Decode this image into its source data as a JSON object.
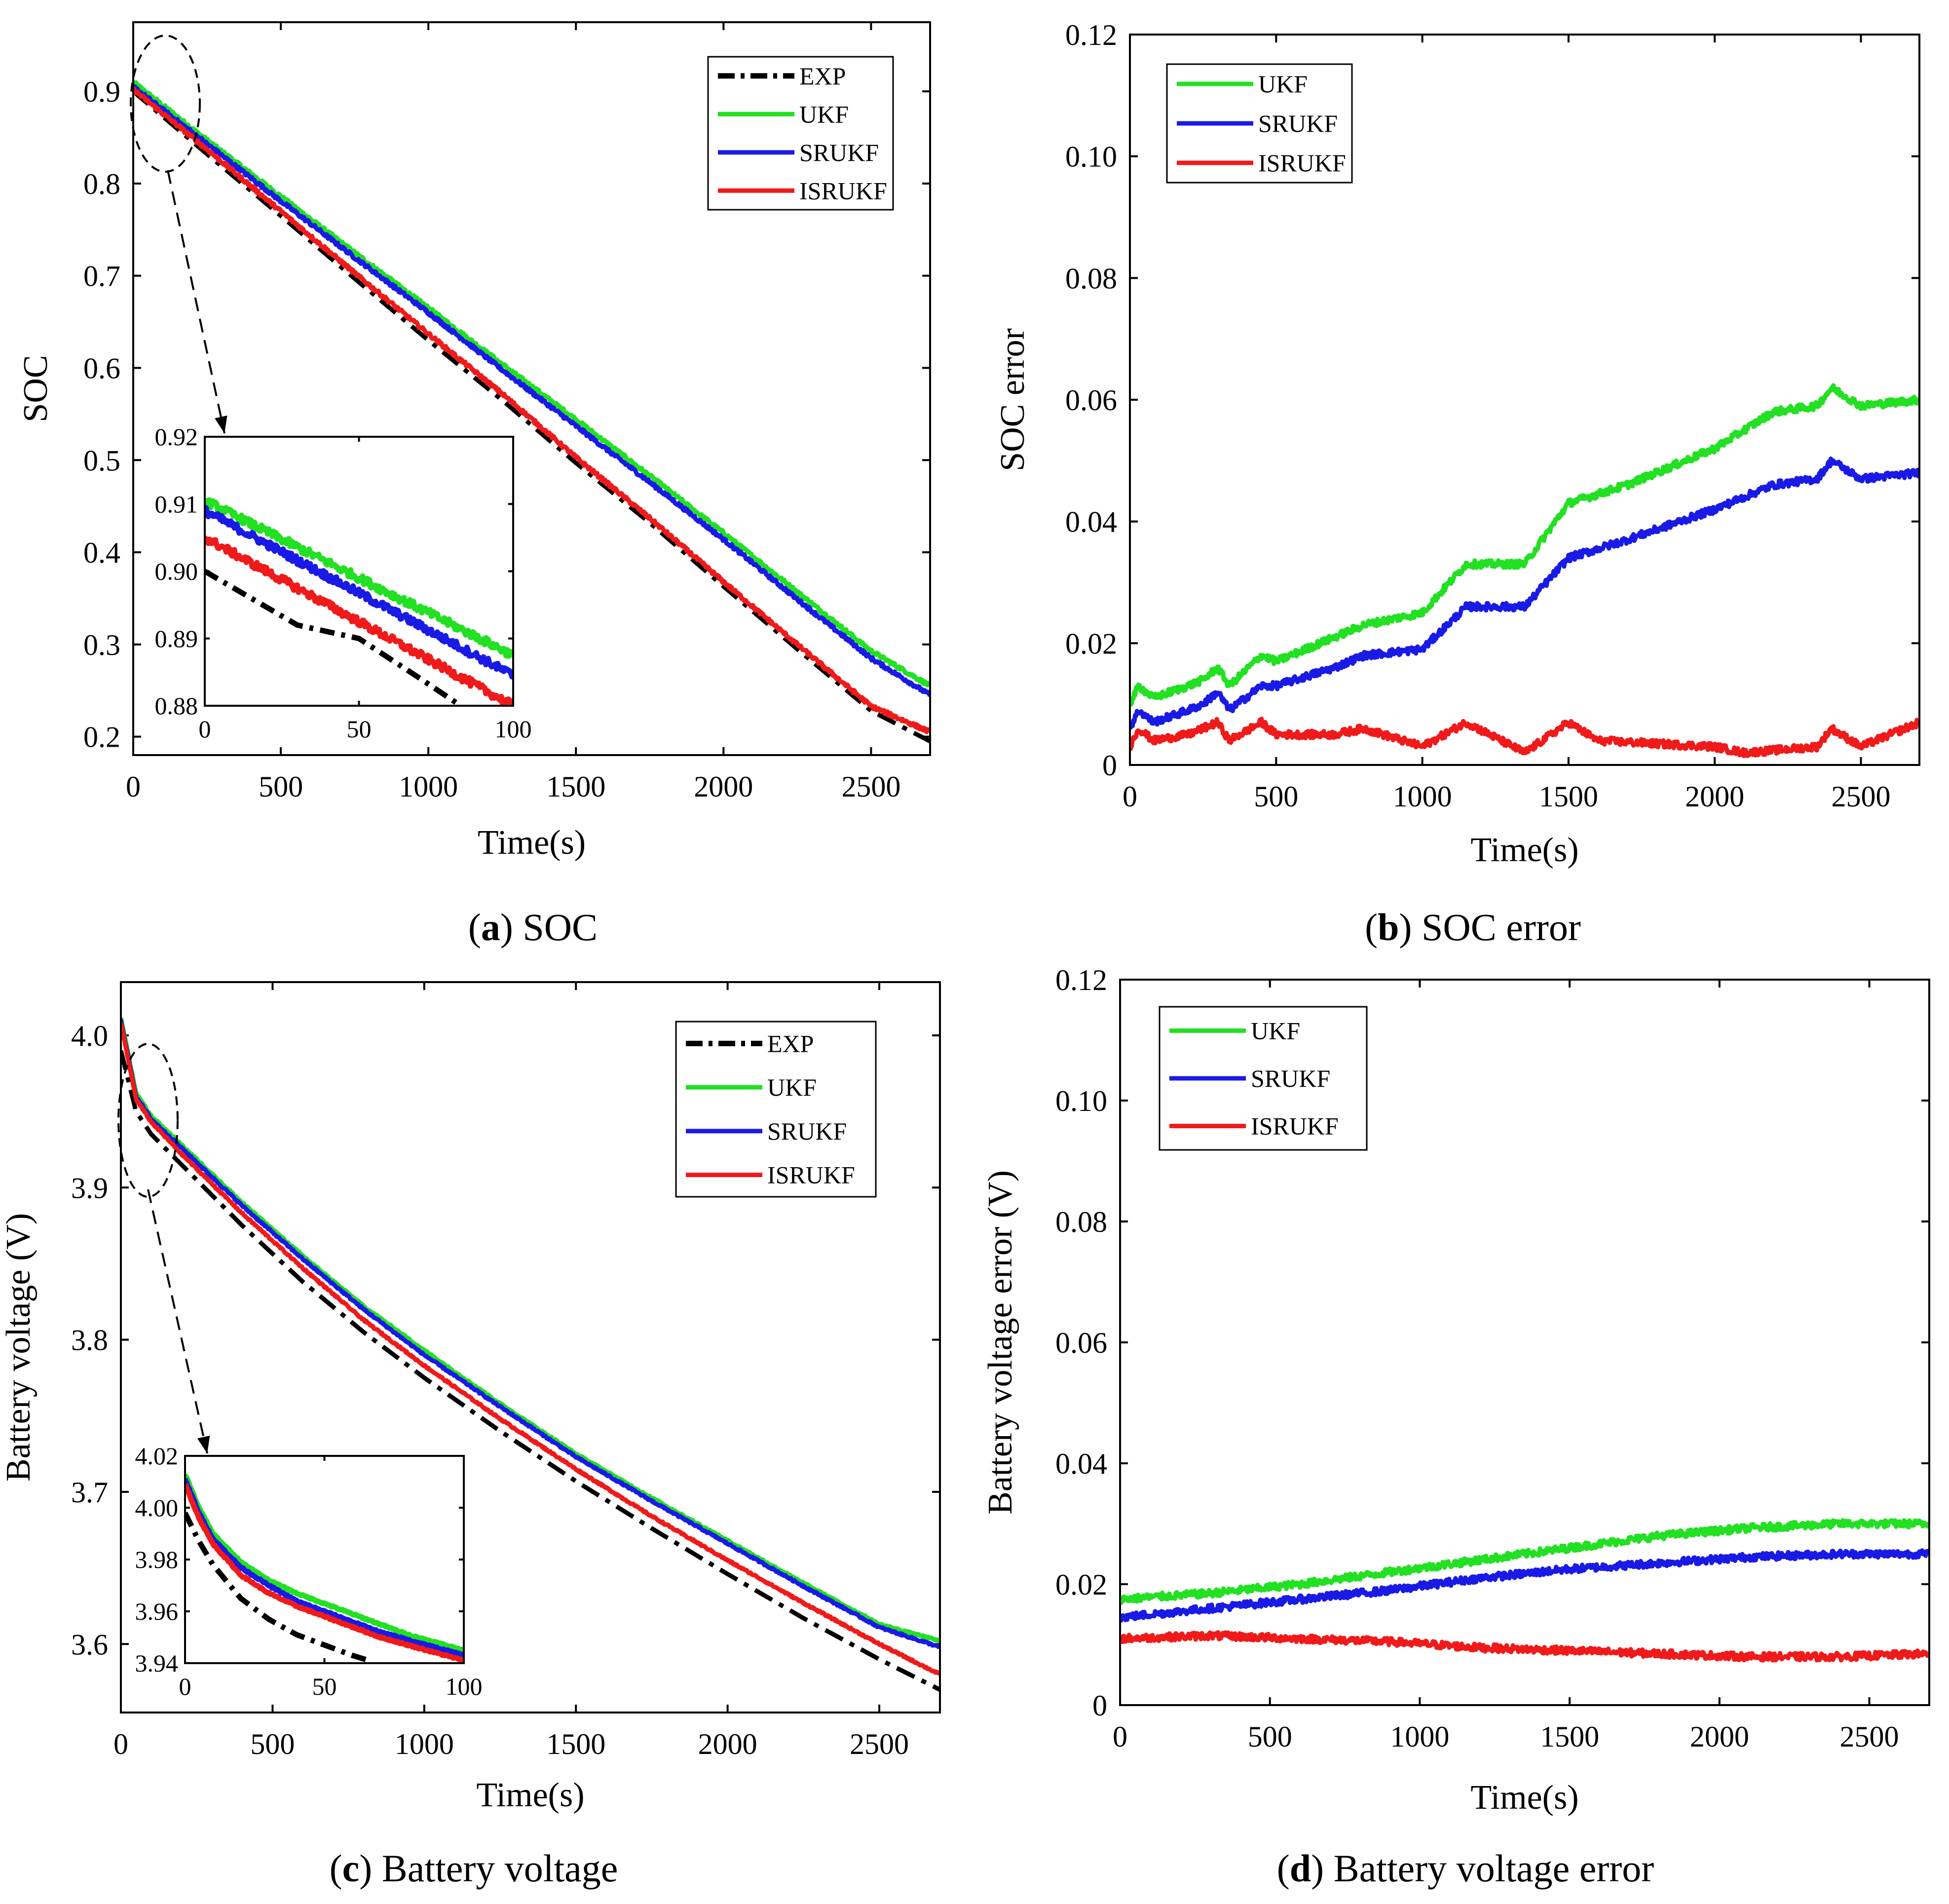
{
  "figure": {
    "colors": {
      "EXP": "#000000",
      "UKF": "#22e022",
      "SRUKF": "#1a1ae6",
      "ISRUKF": "#f01a1a"
    }
  },
  "chart_data": [
    {
      "id": "a",
      "type": "line",
      "caption_letter": "a",
      "caption_text": ") SOC",
      "caption_open": "(",
      "xlabel": "Time(s)",
      "ylabel": "SOC",
      "xlim": [
        0,
        2700
      ],
      "ylim": [
        0.18,
        0.975
      ],
      "xticks": [
        0,
        500,
        1000,
        1500,
        2000,
        2500
      ],
      "xtick_labels": [
        "0",
        "500",
        "1000",
        "1500",
        "2000",
        "2500"
      ],
      "yticks": [
        0.2,
        0.3,
        0.4,
        0.5,
        0.6,
        0.7,
        0.8,
        0.9
      ],
      "ytick_labels": [
        "0.2",
        "0.3",
        "0.4",
        "0.5",
        "0.6",
        "0.7",
        "0.8",
        "0.9"
      ],
      "legend": [
        "EXP",
        "UKF",
        "SRUKF",
        "ISRUKF"
      ],
      "legend_position": "top-right",
      "series": [
        {
          "name": "EXP",
          "style": "dashdot",
          "x": [
            0,
            250,
            500,
            750,
            1000,
            1250,
            1500,
            1750,
            2000,
            2250,
            2500,
            2700
          ],
          "y": [
            0.9,
            0.832,
            0.765,
            0.697,
            0.63,
            0.565,
            0.497,
            0.432,
            0.363,
            0.295,
            0.228,
            0.195
          ]
        },
        {
          "name": "UKF",
          "style": "solid",
          "x": [
            0,
            250,
            500,
            750,
            1000,
            1250,
            1500,
            1750,
            2000,
            2250,
            2500,
            2700
          ],
          "y": [
            0.91,
            0.847,
            0.786,
            0.725,
            0.665,
            0.604,
            0.544,
            0.483,
            0.421,
            0.357,
            0.293,
            0.255
          ]
        },
        {
          "name": "SRUKF",
          "style": "solid",
          "x": [
            0,
            250,
            500,
            750,
            1000,
            1250,
            1500,
            1750,
            2000,
            2250,
            2500,
            2700
          ],
          "y": [
            0.905,
            0.843,
            0.781,
            0.72,
            0.66,
            0.598,
            0.537,
            0.476,
            0.414,
            0.349,
            0.285,
            0.245
          ]
        },
        {
          "name": "ISRUKF",
          "style": "solid",
          "x": [
            0,
            250,
            500,
            750,
            1000,
            1250,
            1500,
            1750,
            2000,
            2250,
            2500,
            2700
          ],
          "y": [
            0.902,
            0.837,
            0.77,
            0.703,
            0.637,
            0.572,
            0.503,
            0.437,
            0.368,
            0.3,
            0.233,
            0.205
          ]
        }
      ],
      "inset": {
        "xlim": [
          0,
          100
        ],
        "ylim": [
          0.88,
          0.92
        ],
        "xticks": [
          0,
          50,
          100
        ],
        "xtick_labels": [
          "0",
          "50",
          "100"
        ],
        "yticks": [
          0.88,
          0.89,
          0.9,
          0.91,
          0.92
        ],
        "ytick_labels": [
          "0.88",
          "0.89",
          "0.90",
          "0.91",
          "0.92"
        ],
        "series": [
          {
            "name": "EXP",
            "style": "dashdot",
            "x": [
              0,
              30,
              50,
              70,
              83
            ],
            "y": [
              0.9,
              0.892,
              0.89,
              0.884,
              0.88
            ]
          },
          {
            "name": "UKF",
            "style": "solid",
            "x": [
              0,
              100
            ],
            "y": [
              0.9105,
              0.8875
            ]
          },
          {
            "name": "SRUKF",
            "style": "solid",
            "x": [
              0,
              100
            ],
            "y": [
              0.909,
              0.8845
            ]
          },
          {
            "name": "ISRUKF",
            "style": "solid",
            "x": [
              0,
              100
            ],
            "y": [
              0.905,
              0.88
            ]
          }
        ]
      }
    },
    {
      "id": "b",
      "type": "line",
      "caption_letter": "b",
      "caption_text": ") SOC error",
      "caption_open": "(",
      "xlabel": "Time(s)",
      "ylabel": "SOC error",
      "xlim": [
        0,
        2700
      ],
      "ylim": [
        0,
        0.12
      ],
      "xticks": [
        0,
        500,
        1000,
        1500,
        2000,
        2500
      ],
      "xtick_labels": [
        "0",
        "500",
        "1000",
        "1500",
        "2000",
        "2500"
      ],
      "yticks": [
        0,
        0.02,
        0.04,
        0.06,
        0.08,
        0.1,
        0.12
      ],
      "ytick_labels": [
        "0",
        "0.02",
        "0.04",
        "0.06",
        "0.08",
        "0.10",
        "0.12"
      ],
      "legend": [
        "UKF",
        "SRUKF",
        "ISRUKF"
      ],
      "legend_position": "top-left",
      "series": [
        {
          "name": "UKF",
          "style": "solid",
          "x": [
            0,
            30,
            80,
            200,
            250,
            300,
            340,
            450,
            500,
            700,
            800,
            1000,
            1150,
            1350,
            1500,
            1700,
            2000,
            2200,
            2350,
            2400,
            2500,
            2700
          ],
          "y": [
            0.01,
            0.013,
            0.011,
            0.013,
            0.014,
            0.016,
            0.013,
            0.018,
            0.017,
            0.021,
            0.023,
            0.025,
            0.033,
            0.033,
            0.043,
            0.046,
            0.052,
            0.058,
            0.059,
            0.062,
            0.059,
            0.06
          ]
        },
        {
          "name": "SRUKF",
          "style": "solid",
          "x": [
            0,
            30,
            80,
            200,
            250,
            300,
            340,
            450,
            500,
            700,
            800,
            1000,
            1150,
            1350,
            1500,
            1700,
            2000,
            2200,
            2350,
            2400,
            2500,
            2700
          ],
          "y": [
            0.006,
            0.009,
            0.007,
            0.009,
            0.01,
            0.012,
            0.009,
            0.013,
            0.013,
            0.016,
            0.018,
            0.019,
            0.026,
            0.026,
            0.034,
            0.037,
            0.042,
            0.046,
            0.047,
            0.05,
            0.047,
            0.048
          ]
        },
        {
          "name": "ISRUKF",
          "style": "solid",
          "x": [
            0,
            30,
            80,
            200,
            300,
            340,
            450,
            500,
            700,
            800,
            1000,
            1150,
            1350,
            1500,
            1600,
            2000,
            2100,
            2350,
            2400,
            2500,
            2700
          ],
          "y": [
            0.003,
            0.006,
            0.004,
            0.005,
            0.007,
            0.004,
            0.007,
            0.005,
            0.005,
            0.006,
            0.003,
            0.007,
            0.002,
            0.007,
            0.004,
            0.003,
            0.002,
            0.003,
            0.006,
            0.003,
            0.007
          ]
        }
      ]
    },
    {
      "id": "c",
      "type": "line",
      "caption_letter": "c",
      "caption_text": ") Battery voltage",
      "caption_open": "(",
      "xlabel": "Time(s)",
      "ylabel": "Battery voltage (V)",
      "xlim": [
        0,
        2700
      ],
      "ylim": [
        3.555,
        4.035
      ],
      "xticks": [
        0,
        500,
        1000,
        1500,
        2000,
        2500
      ],
      "xtick_labels": [
        "0",
        "500",
        "1000",
        "1500",
        "2000",
        "2500"
      ],
      "yticks": [
        3.6,
        3.7,
        3.8,
        3.9,
        4.0
      ],
      "ytick_labels": [
        "3.6",
        "3.7",
        "3.8",
        "3.9",
        "4.0"
      ],
      "legend": [
        "EXP",
        "UKF",
        "SRUKF",
        "ISRUKF"
      ],
      "legend_position": "top-right",
      "series": [
        {
          "name": "EXP",
          "style": "dashdot",
          "x": [
            0,
            50,
            100,
            200,
            400,
            600,
            800,
            1000,
            1250,
            1500,
            1750,
            2000,
            2250,
            2500,
            2700
          ],
          "y": [
            3.99,
            3.95,
            3.935,
            3.915,
            3.875,
            3.838,
            3.805,
            3.775,
            3.74,
            3.707,
            3.676,
            3.646,
            3.617,
            3.59,
            3.57
          ]
        },
        {
          "name": "UKF",
          "style": "solid",
          "x": [
            0,
            50,
            100,
            200,
            400,
            600,
            800,
            1000,
            1250,
            1500,
            1750,
            2000,
            2250,
            2500,
            2700
          ],
          "y": [
            4.012,
            3.962,
            3.947,
            3.928,
            3.89,
            3.855,
            3.822,
            3.793,
            3.758,
            3.725,
            3.696,
            3.668,
            3.64,
            3.613,
            3.602
          ]
        },
        {
          "name": "SRUKF",
          "style": "solid",
          "x": [
            0,
            50,
            100,
            200,
            400,
            600,
            800,
            1000,
            1250,
            1500,
            1750,
            2000,
            2250,
            2500,
            2700
          ],
          "y": [
            4.01,
            3.96,
            3.945,
            3.926,
            3.888,
            3.853,
            3.82,
            3.79,
            3.756,
            3.723,
            3.694,
            3.666,
            3.638,
            3.611,
            3.598
          ]
        },
        {
          "name": "ISRUKF",
          "style": "solid",
          "x": [
            0,
            50,
            100,
            200,
            400,
            600,
            800,
            1000,
            1250,
            1500,
            1750,
            2000,
            2250,
            2500,
            2700
          ],
          "y": [
            4.008,
            3.958,
            3.943,
            3.922,
            3.883,
            3.847,
            3.813,
            3.783,
            3.748,
            3.715,
            3.684,
            3.655,
            3.627,
            3.6,
            3.58
          ]
        }
      ],
      "inset": {
        "xlim": [
          0,
          100
        ],
        "ylim": [
          3.94,
          4.02
        ],
        "xticks": [
          0,
          50,
          100
        ],
        "xtick_labels": [
          "0",
          "50",
          "100"
        ],
        "yticks": [
          3.94,
          3.96,
          3.98,
          4.0,
          4.02
        ],
        "ytick_labels": [
          "3.94",
          "3.96",
          "3.98",
          "4.00",
          "4.02"
        ],
        "series": [
          {
            "name": "EXP",
            "style": "dashdot",
            "x": [
              0,
              5,
              10,
              20,
              30,
              40,
              50,
              60,
              66
            ],
            "y": [
              3.998,
              3.987,
              3.978,
              3.965,
              3.957,
              3.951,
              3.947,
              3.943,
              3.941
            ]
          },
          {
            "name": "UKF",
            "style": "solid",
            "x": [
              0,
              5,
              10,
              20,
              30,
              40,
              50,
              60,
              70,
              80,
              90,
              100
            ],
            "y": [
              4.013,
              4.0,
              3.99,
              3.979,
              3.972,
              3.967,
              3.963,
              3.959,
              3.955,
              3.951,
              3.948,
              3.945
            ]
          },
          {
            "name": "SRUKF",
            "style": "solid",
            "x": [
              0,
              5,
              10,
              20,
              30,
              40,
              50,
              60,
              70,
              80,
              90,
              100
            ],
            "y": [
              4.011,
              3.998,
              3.988,
              3.977,
              3.97,
              3.964,
              3.96,
              3.956,
              3.952,
              3.949,
              3.946,
              3.943
            ]
          },
          {
            "name": "ISRUKF",
            "style": "solid",
            "x": [
              0,
              5,
              10,
              20,
              30,
              40,
              50,
              60,
              70,
              80,
              90,
              100
            ],
            "y": [
              4.009,
              3.996,
              3.986,
              3.974,
              3.967,
              3.962,
              3.958,
              3.954,
              3.95,
              3.947,
              3.944,
              3.941
            ]
          }
        ]
      }
    },
    {
      "id": "d",
      "type": "line",
      "caption_letter": "d",
      "caption_text": ") Battery voltage error",
      "caption_open": "(",
      "xlabel": "Time(s)",
      "ylabel": "Battery voltage error (V)",
      "xlim": [
        0,
        2700
      ],
      "ylim": [
        0,
        0.12
      ],
      "xticks": [
        0,
        500,
        1000,
        1500,
        2000,
        2500
      ],
      "xtick_labels": [
        "0",
        "500",
        "1000",
        "1500",
        "2000",
        "2500"
      ],
      "yticks": [
        0,
        0.02,
        0.04,
        0.06,
        0.08,
        0.1,
        0.12
      ],
      "ytick_labels": [
        "0",
        "0.02",
        "0.04",
        "0.06",
        "0.08",
        "0.10",
        "0.12"
      ],
      "legend": [
        "UKF",
        "SRUKF",
        "ISRUKF"
      ],
      "legend_position": "top-left",
      "series": [
        {
          "name": "UKF",
          "style": "solid",
          "x": [
            0,
            300,
            600,
            900,
            1200,
            1500,
            1800,
            2100,
            2400,
            2700
          ],
          "y": [
            0.0175,
            0.0185,
            0.02,
            0.022,
            0.024,
            0.026,
            0.028,
            0.0293,
            0.03,
            0.03
          ]
        },
        {
          "name": "SRUKF",
          "style": "solid",
          "x": [
            0,
            300,
            600,
            900,
            1200,
            1500,
            1800,
            2100,
            2400,
            2700
          ],
          "y": [
            0.0145,
            0.016,
            0.0175,
            0.019,
            0.021,
            0.0225,
            0.0235,
            0.0245,
            0.025,
            0.025
          ]
        },
        {
          "name": "ISRUKF",
          "style": "solid",
          "x": [
            0,
            300,
            600,
            900,
            1200,
            1500,
            1800,
            2100,
            2400,
            2700
          ],
          "y": [
            0.011,
            0.0115,
            0.011,
            0.0105,
            0.0095,
            0.009,
            0.0085,
            0.008,
            0.008,
            0.0085
          ]
        }
      ]
    }
  ]
}
